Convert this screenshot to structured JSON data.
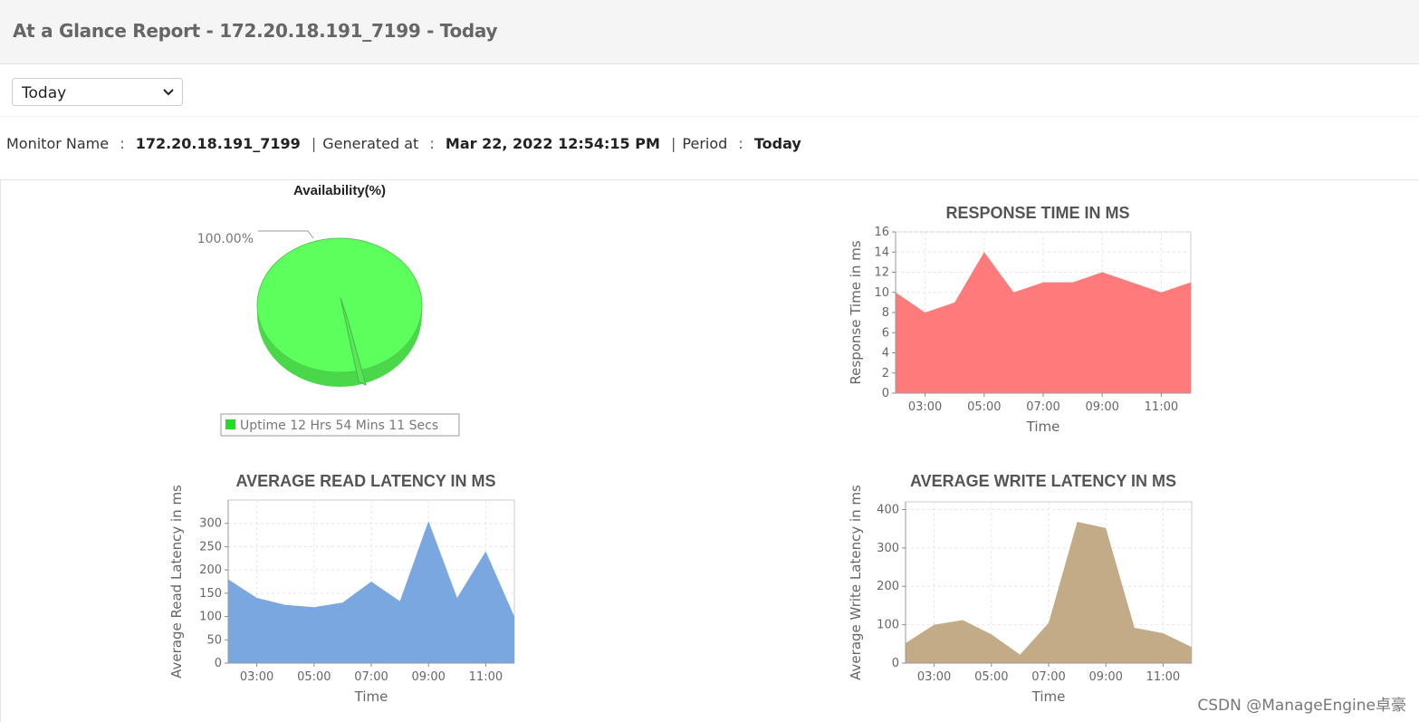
{
  "header": {
    "title": "At a Glance Report - 172.20.18.191_7199 - Today"
  },
  "period_select": {
    "value": "Today"
  },
  "info": {
    "monitor_label": "Monitor Name",
    "monitor_value": "172.20.18.191_7199",
    "generated_label": "Generated at",
    "generated_value": "Mar 22, 2022 12:54:15 PM",
    "period_label": "Period",
    "period_value": "Today",
    "colon": ":",
    "pipe": "|"
  },
  "watermark": "CSDN @ManageEngine卓豪",
  "chart_data": [
    {
      "id": "availability",
      "type": "pie",
      "title": "Availability(%)",
      "labels": [
        "Uptime"
      ],
      "values": [
        100.0
      ],
      "slice_label": "100.00%",
      "legend": [
        "Uptime 12 Hrs 54 Mins 11 Secs"
      ],
      "color": "#5cff5c"
    },
    {
      "id": "response",
      "type": "area",
      "title": "RESPONSE TIME IN MS",
      "xlabel": "Time",
      "ylabel": "Response Time in ms",
      "x": [
        2,
        3,
        4,
        5,
        6,
        7,
        8,
        9,
        10,
        11,
        12
      ],
      "values": [
        10,
        8,
        9,
        14,
        10,
        11,
        11,
        12,
        11,
        10,
        11
      ],
      "xlim": [
        2,
        12
      ],
      "ylim": [
        0,
        16
      ],
      "yticks": [
        0,
        2,
        4,
        6,
        8,
        10,
        12,
        14,
        16
      ],
      "xticks": [
        3,
        5,
        7,
        9,
        11
      ],
      "xtick_labels": [
        "03:00",
        "05:00",
        "07:00",
        "09:00",
        "11:00"
      ],
      "color": "#ff7a7a"
    },
    {
      "id": "read",
      "type": "area",
      "title": "AVERAGE READ LATENCY IN MS",
      "xlabel": "Time",
      "ylabel": "Average Read Latency in ms",
      "x": [
        2,
        3,
        4,
        5,
        6,
        7,
        8,
        9,
        10,
        11,
        12
      ],
      "values": [
        180,
        140,
        125,
        120,
        130,
        175,
        133,
        305,
        140,
        240,
        100
      ],
      "xlim": [
        2,
        12
      ],
      "ylim": [
        0,
        350
      ],
      "yticks": [
        0,
        50,
        100,
        150,
        200,
        250,
        300
      ],
      "xticks": [
        3,
        5,
        7,
        9,
        11
      ],
      "xtick_labels": [
        "03:00",
        "05:00",
        "07:00",
        "09:00",
        "11:00"
      ],
      "color": "#7aa7e0"
    },
    {
      "id": "write",
      "type": "area",
      "title": "AVERAGE WRITE LATENCY IN MS",
      "xlabel": "Time",
      "ylabel": "Average Write Latency in ms",
      "x": [
        2,
        3,
        4,
        5,
        6,
        7,
        8,
        9,
        10,
        11,
        12
      ],
      "values": [
        52,
        100,
        112,
        75,
        22,
        105,
        368,
        352,
        92,
        78,
        42
      ],
      "xlim": [
        2,
        12
      ],
      "ylim": [
        0,
        420
      ],
      "yticks": [
        0,
        100,
        200,
        300,
        400
      ],
      "xticks": [
        3,
        5,
        7,
        9,
        11
      ],
      "xtick_labels": [
        "03:00",
        "05:00",
        "07:00",
        "09:00",
        "11:00"
      ],
      "color": "#c4ab88"
    }
  ]
}
